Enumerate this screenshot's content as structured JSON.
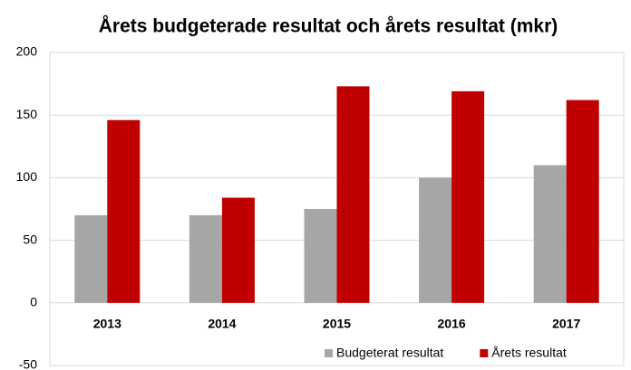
{
  "chart_data": {
    "type": "bar",
    "title": "Årets budgeterade resultat och årets resultat (mkr)",
    "categories": [
      "2013",
      "2014",
      "2015",
      "2016",
      "2017"
    ],
    "series": [
      {
        "name": "Budgeterat resultat",
        "color": "#a6a6a6",
        "values": [
          70,
          70,
          75,
          100,
          110
        ]
      },
      {
        "name": "Årets resultat",
        "color": "#c00000",
        "values": [
          146,
          84,
          173,
          169,
          162
        ]
      }
    ],
    "ylim": [
      -50,
      200
    ],
    "yticks": [
      -50,
      0,
      50,
      100,
      150,
      200
    ],
    "grid": true,
    "legend": "bottom-right"
  }
}
